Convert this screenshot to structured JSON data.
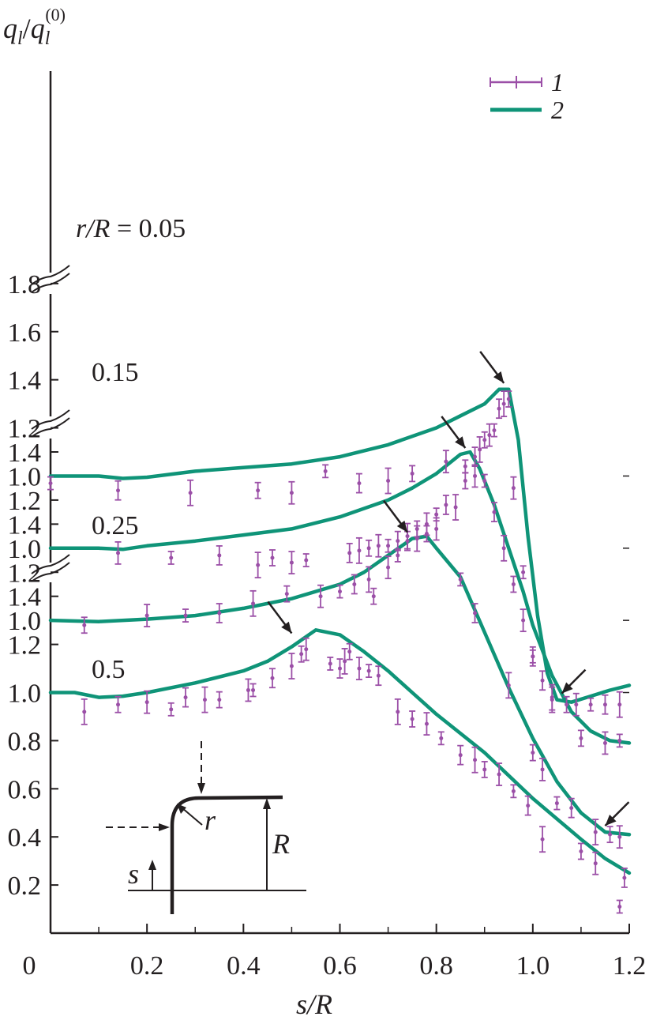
{
  "chart_data": {
    "type": "line",
    "ylabel": "q_l/q_l^(0)",
    "ylabel_parts": {
      "main": "q",
      "sub": "l",
      "slash": "/",
      "main2": "q",
      "sub2": "l",
      "sup2": "(0)"
    },
    "xlabel": "s/R",
    "xlim": [
      0,
      1.2
    ],
    "x_ticks": [
      "0",
      "0.2",
      "0.4",
      "0.6",
      "0.8",
      "1.0",
      "1.2"
    ],
    "y_ticks_bottom": [
      "0.2",
      "0.4",
      "0.6",
      "0.8",
      "1.0",
      "1.2",
      "1.4"
    ],
    "y_ticks_25": [
      "1.0",
      "1.2",
      "1.4"
    ],
    "y_ticks_15": [
      "1.0",
      "1.2",
      "1.4"
    ],
    "y_ticks_05": [
      "1.0",
      "1.2",
      "1.4",
      "1.6",
      "1.8"
    ],
    "legend": [
      {
        "label": "1",
        "style": "points with error bars",
        "color": "#9b4fa7"
      },
      {
        "label": "2",
        "style": "line",
        "color": "#0f9478"
      }
    ],
    "colors": {
      "points": "#9b4fa7",
      "line": "#0f9478",
      "axis": "#231f20"
    },
    "series": [
      {
        "panel": "r/R = 0.05",
        "label": "r/R = 0.05",
        "offset": 0.9,
        "line_x": [
          0,
          0.1,
          0.15,
          0.2,
          0.3,
          0.4,
          0.5,
          0.6,
          0.7,
          0.8,
          0.85,
          0.9,
          0.93,
          0.95,
          0.97,
          0.99,
          1.01,
          1.03,
          1.05,
          1.08,
          1.12,
          1.16,
          1.2
        ],
        "line_y": [
          1.0,
          1.0,
          0.99,
          0.995,
          1.02,
          1.035,
          1.05,
          1.08,
          1.13,
          1.2,
          1.25,
          1.3,
          1.36,
          1.36,
          1.15,
          0.75,
          0.42,
          0.18,
          0.07,
          0.06,
          0.085,
          0.11,
          0.13
        ],
        "points_x": [
          0.0,
          0.14,
          0.29,
          0.43,
          0.5,
          0.57,
          0.64,
          0.7,
          0.75,
          0.82,
          0.86,
          0.88,
          0.89,
          0.9,
          0.91,
          0.92,
          0.93,
          0.94,
          0.95,
          0.96,
          0.98,
          1.0,
          1.04,
          1.07,
          1.09,
          1.12,
          1.15,
          1.18
        ],
        "points_y": [
          0.97,
          0.94,
          0.93,
          0.94,
          0.93,
          1.02,
          0.97,
          0.98,
          1.01,
          1.06,
          1.04,
          1.08,
          1.11,
          1.15,
          1.17,
          1.19,
          1.28,
          1.3,
          1.32,
          0.95,
          0.6,
          0.25,
          0.08,
          0.05,
          0.05,
          0.05,
          0.05,
          0.05
        ]
      },
      {
        "panel": "0.15",
        "label": "0.15",
        "offset": 0.6,
        "line_x": [
          0,
          0.1,
          0.15,
          0.2,
          0.3,
          0.4,
          0.5,
          0.6,
          0.7,
          0.75,
          0.8,
          0.85,
          0.87,
          0.89,
          0.92,
          0.95,
          0.98,
          1.0,
          1.04,
          1.08,
          1.12,
          1.16,
          1.2
        ],
        "line_y": [
          1.0,
          1.0,
          0.995,
          1.01,
          1.03,
          1.055,
          1.08,
          1.13,
          1.2,
          1.25,
          1.31,
          1.39,
          1.4,
          1.33,
          1.18,
          1.0,
          0.82,
          0.68,
          0.47,
          0.32,
          0.24,
          0.2,
          0.19
        ],
        "points_x": [
          0.14,
          0.25,
          0.35,
          0.43,
          0.46,
          0.5,
          0.53,
          0.62,
          0.64,
          0.66,
          0.68,
          0.7,
          0.72,
          0.74,
          0.76,
          0.78,
          0.8,
          0.82,
          0.84,
          0.86,
          0.88,
          0.9,
          0.92,
          0.94,
          0.96,
          0.98,
          1.0,
          1.02,
          1.04,
          1.1,
          1.15,
          1.18
        ],
        "points_y": [
          0.98,
          0.96,
          0.97,
          0.93,
          0.96,
          0.94,
          0.95,
          0.98,
          0.99,
          1.0,
          1.01,
          1.01,
          1.03,
          1.05,
          1.08,
          1.1,
          1.14,
          1.18,
          1.17,
          1.28,
          1.3,
          1.28,
          1.15,
          1.0,
          0.85,
          0.7,
          0.55,
          0.45,
          0.37,
          0.21,
          0.19,
          0.2
        ]
      },
      {
        "panel": "0.25",
        "label": "0.25",
        "offset": 0.3,
        "line_x": [
          0,
          0.1,
          0.2,
          0.3,
          0.4,
          0.5,
          0.6,
          0.65,
          0.7,
          0.75,
          0.78,
          0.8,
          0.85,
          0.9,
          0.95,
          1.0,
          1.05,
          1.1,
          1.15,
          1.2
        ],
        "line_y": [
          1.0,
          0.995,
          1.005,
          1.02,
          1.05,
          1.09,
          1.15,
          1.2,
          1.27,
          1.34,
          1.35,
          1.3,
          1.18,
          0.95,
          0.72,
          0.51,
          0.33,
          0.2,
          0.12,
          0.11
        ],
        "points_x": [
          0.07,
          0.2,
          0.28,
          0.35,
          0.42,
          0.49,
          0.56,
          0.6,
          0.63,
          0.66,
          0.67,
          0.7,
          0.72,
          0.74,
          0.76,
          0.78,
          0.8,
          0.85,
          0.88,
          0.95,
          1.0,
          1.02,
          1.05,
          1.08,
          1.13,
          1.16,
          1.18
        ],
        "points_y": [
          0.98,
          1.02,
          1.02,
          1.03,
          1.07,
          1.11,
          1.1,
          1.12,
          1.15,
          1.17,
          1.1,
          1.22,
          1.27,
          1.33,
          1.34,
          1.36,
          1.38,
          1.17,
          1.03,
          0.73,
          0.45,
          0.38,
          0.24,
          0.22,
          0.12,
          0.11,
          0.1
        ]
      },
      {
        "panel": "0.5",
        "label": "0.5",
        "offset": 0.0,
        "line_x": [
          0,
          0.05,
          0.1,
          0.15,
          0.2,
          0.3,
          0.4,
          0.45,
          0.5,
          0.55,
          0.6,
          0.65,
          0.7,
          0.75,
          0.8,
          0.9,
          1.0,
          1.1,
          1.15,
          1.2
        ],
        "line_y": [
          1.0,
          1.0,
          0.98,
          0.985,
          1.0,
          1.04,
          1.09,
          1.13,
          1.19,
          1.26,
          1.24,
          1.17,
          1.09,
          1.0,
          0.91,
          0.75,
          0.56,
          0.39,
          0.31,
          0.25
        ],
        "points_x": [
          0.07,
          0.14,
          0.2,
          0.25,
          0.28,
          0.32,
          0.35,
          0.41,
          0.42,
          0.46,
          0.5,
          0.52,
          0.53,
          0.58,
          0.6,
          0.61,
          0.62,
          0.64,
          0.66,
          0.68,
          0.72,
          0.75,
          0.78,
          0.81,
          0.85,
          0.88,
          0.9,
          0.93,
          0.96,
          0.99,
          1.02,
          1.1,
          1.13,
          1.18,
          1.19
        ],
        "points_y": [
          0.92,
          0.95,
          0.96,
          0.93,
          0.98,
          0.97,
          0.97,
          1.01,
          1.01,
          1.06,
          1.11,
          1.16,
          1.18,
          1.12,
          1.1,
          1.13,
          1.17,
          1.1,
          1.09,
          1.07,
          0.92,
          0.89,
          0.87,
          0.81,
          0.74,
          0.72,
          0.68,
          0.66,
          0.59,
          0.53,
          0.39,
          0.34,
          0.29,
          0.11,
          0.23
        ]
      }
    ],
    "arrows": [
      {
        "panel": "r/R = 0.05",
        "x": 0.94,
        "y": 1.36,
        "dir": "down-right"
      },
      {
        "panel": "r/R = 0.05",
        "x": 1.06,
        "y": 0.07,
        "dir": "down-left"
      },
      {
        "panel": "0.15",
        "x": 0.86,
        "y": 1.39,
        "dir": "down-right"
      },
      {
        "panel": "0.25",
        "x": 0.74,
        "y": 1.34,
        "dir": "down-right"
      },
      {
        "panel": "0.25",
        "x": 1.15,
        "y": 0.12,
        "dir": "down-left"
      },
      {
        "panel": "0.5",
        "x": 0.5,
        "y": 1.22,
        "dir": "down-right"
      }
    ]
  },
  "inset": {
    "r_label": "r",
    "R_label": "R",
    "s_label": "s"
  }
}
